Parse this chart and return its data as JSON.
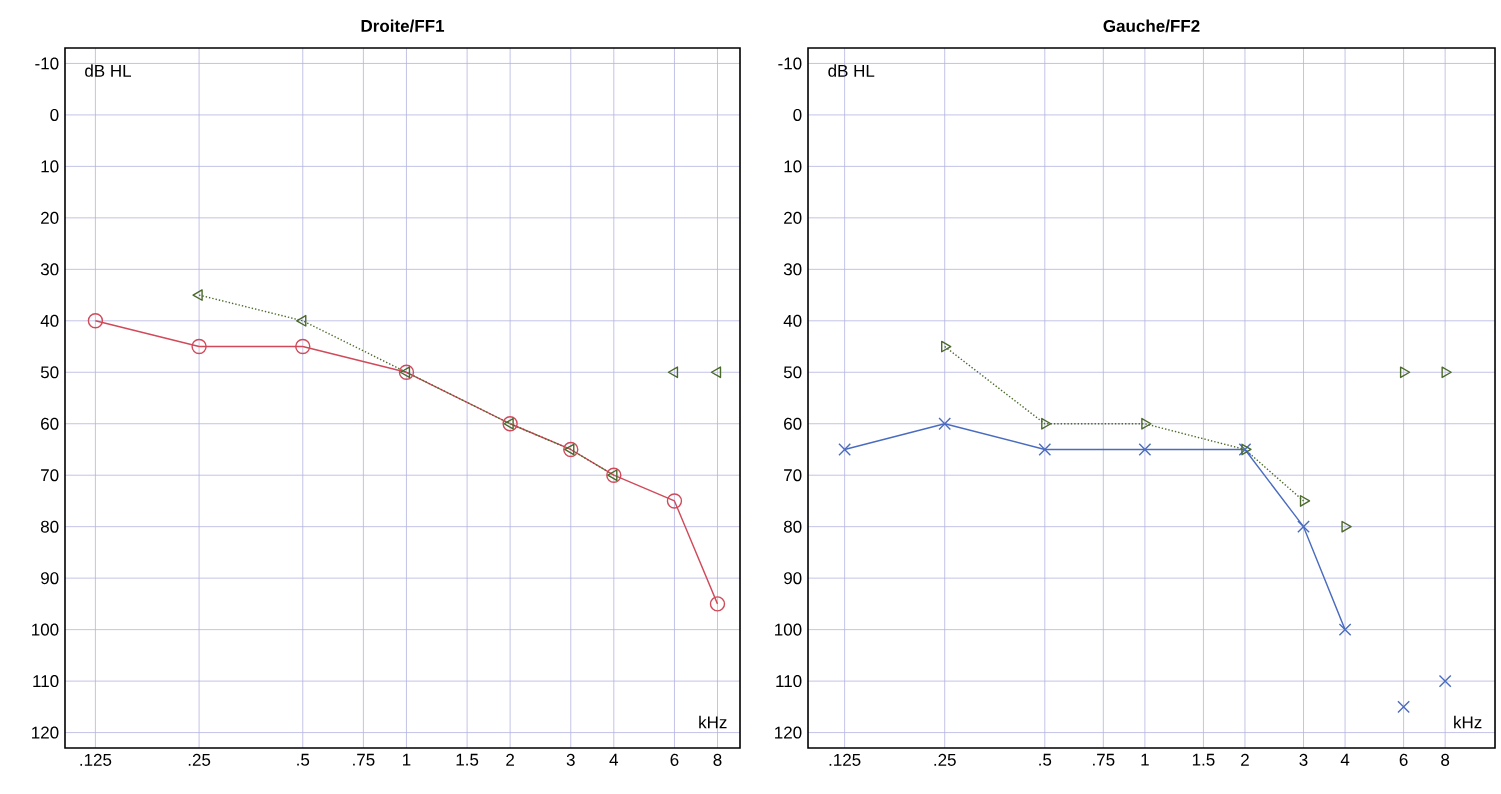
{
  "chart_data": [
    {
      "type": "line",
      "title": "Droite/FF1",
      "xlabel": "kHz",
      "ylabel": "dB HL",
      "log": "x",
      "grid": true,
      "xlim": [
        0.102,
        9.3
      ],
      "ylim": [
        123,
        -13
      ],
      "xticks": [
        {
          "value": 0.125,
          "label": ".125"
        },
        {
          "value": 0.25,
          "label": ".25"
        },
        {
          "value": 0.5,
          "label": ".5"
        },
        {
          "value": 0.75,
          "label": ".75"
        },
        1,
        1.5,
        2,
        3,
        4,
        6,
        8
      ],
      "yticks": [
        -10,
        0,
        10,
        20,
        30,
        40,
        50,
        60,
        70,
        80,
        90,
        100,
        110,
        120
      ],
      "series": [
        {
          "type": "line",
          "color": "#d04a5a",
          "marker": "circle",
          "line_style": "solid",
          "x": [
            0.125,
            0.25,
            0.5,
            1,
            2,
            3,
            4,
            6,
            8
          ],
          "values": [
            40,
            45,
            45,
            50,
            60,
            65,
            70,
            75,
            95
          ]
        },
        {
          "type": "line",
          "color": "#4a6a2a",
          "marker": "triangle",
          "line_style": "dotted",
          "x": [
            0.25,
            0.5,
            1,
            2,
            3,
            4
          ],
          "values": [
            35,
            40,
            50,
            60,
            65,
            70
          ]
        },
        {
          "type": "scatter",
          "color": "#4a6a2a",
          "marker": "triangle",
          "x": [
            6,
            8
          ],
          "values": [
            50,
            50
          ]
        }
      ]
    },
    {
      "type": "line",
      "title": "Gauche/FF2",
      "xlabel": "kHz",
      "ylabel": "dB HL",
      "log": "x",
      "grid": true,
      "xlim": [
        0.097,
        11.3
      ],
      "ylim": [
        123,
        -13
      ],
      "xticks": [
        {
          "value": 0.125,
          "label": ".125"
        },
        {
          "value": 0.25,
          "label": ".25"
        },
        {
          "value": 0.5,
          "label": ".5"
        },
        {
          "value": 0.75,
          "label": ".75"
        },
        1,
        1.5,
        2,
        3,
        4,
        6,
        8
      ],
      "yticks": [
        -10,
        0,
        10,
        20,
        30,
        40,
        50,
        60,
        70,
        80,
        90,
        100,
        110,
        120
      ],
      "series": [
        {
          "type": "line",
          "color": "#4a6cc0",
          "marker": "cross",
          "line_style": "solid",
          "x": [
            0.125,
            0.25,
            0.5,
            1,
            2,
            3,
            4
          ],
          "values": [
            65,
            60,
            65,
            65,
            65,
            80,
            100
          ]
        },
        {
          "type": "scatter",
          "color": "#4a6cc0",
          "marker": "cross",
          "x": [
            6,
            8
          ],
          "values": [
            115,
            110
          ]
        },
        {
          "type": "line",
          "color": "#4a6a2a",
          "marker": "triangle",
          "line_style": "dotted",
          "x": [
            0.25,
            0.5,
            1,
            2,
            3
          ],
          "values": [
            45,
            60,
            60,
            65,
            75
          ]
        },
        {
          "type": "scatter",
          "color": "#4a6a2a",
          "marker": "triangle",
          "x": [
            4,
            6,
            8
          ],
          "values": [
            80,
            50,
            50
          ]
        }
      ]
    }
  ]
}
